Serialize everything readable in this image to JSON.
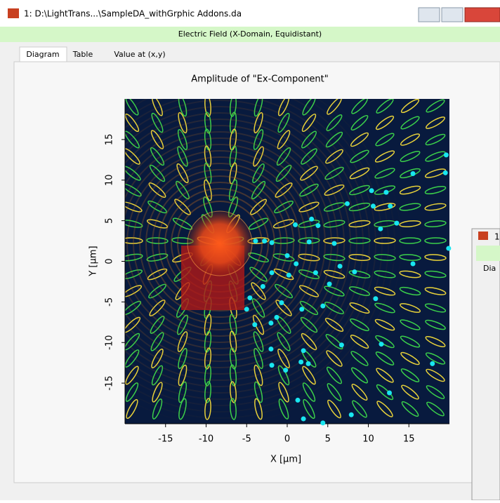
{
  "window": {
    "title": "1: D:\\LightTrans...\\SampleDA_withGrphic Addons.da",
    "header": "Electric Field (X-Domain, Equidistant)",
    "tabs": [
      "Diagram",
      "Table",
      "Value at (x,y)"
    ]
  },
  "second_window": {
    "title": "1",
    "tab": "Dia"
  },
  "chart_data": {
    "type": "scatter",
    "title": "Amplitude of \"Ex-Component\"",
    "x_label": "X [µm]",
    "y_label": "Y [µm]",
    "xlim": [
      -20,
      20
    ],
    "ylim": [
      -20,
      20
    ],
    "xticks": [
      -15,
      -10,
      -5,
      0,
      5,
      10,
      15
    ],
    "yticks": [
      -15,
      -10,
      -5,
      0,
      5,
      10,
      15
    ],
    "series": [
      {
        "color": "#19e6f0",
        "x": [
          -3.9,
          -2.8,
          -1.9,
          0.0,
          1.1,
          0.2,
          -1.9,
          -3.0,
          -4.6,
          -5.0,
          -4.0,
          -2.0,
          -0.7,
          -1.3,
          -2.0,
          -1.9,
          -0.2,
          1.7,
          2.6,
          2.0,
          1.8,
          3.5,
          5.2,
          6.5,
          8.3,
          5.8,
          1.0,
          3.0,
          3.8,
          2.7,
          7.4,
          10.4,
          12.2,
          10.6,
          12.7,
          13.5,
          11.5,
          15.5,
          19.5,
          19.6,
          19.9,
          15.5,
          10.9,
          4.4,
          6.7,
          11.6,
          12.6,
          7.9,
          4.4,
          2.0,
          1.3,
          17.9
        ],
        "y": [
          2.5,
          2.5,
          2.3,
          0.7,
          -0.3,
          -1.7,
          -1.4,
          -3.1,
          -4.5,
          -5.9,
          -7.8,
          -7.6,
          -5.1,
          -6.9,
          -10.8,
          -12.8,
          -13.4,
          -12.4,
          -12.6,
          -11.0,
          -5.9,
          -1.4,
          -2.8,
          -0.6,
          -1.3,
          2.2,
          4.5,
          5.2,
          4.4,
          2.4,
          7.1,
          8.7,
          8.5,
          6.8,
          6.8,
          4.7,
          4.0,
          10.8,
          10.9,
          13.1,
          1.6,
          -0.3,
          -4.6,
          -5.5,
          -10.3,
          -10.2,
          -16.2,
          -18.9,
          -19.9,
          -19.4,
          -17.1,
          -12.6
        ]
      }
    ]
  }
}
